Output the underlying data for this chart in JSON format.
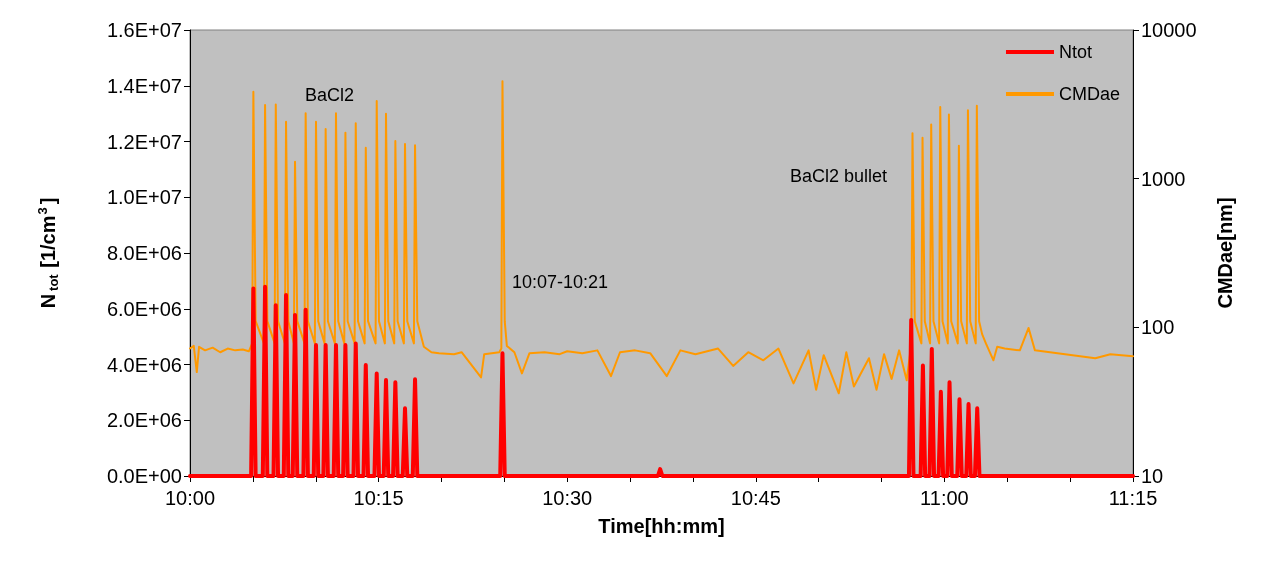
{
  "chart_data": {
    "type": "line",
    "xlabel": "Time[hh:mm]",
    "ylabel": "N$_{tot}$ [1/cm$^{3}$]",
    "y2label": "CMDae[nm]",
    "xlim": [
      10,
      11.25
    ],
    "xticks": [
      {
        "value": 10,
        "label": "10:00"
      },
      {
        "value": 10.0833,
        "label": null
      },
      {
        "value": 10.1667,
        "label": null
      },
      {
        "value": 10.25,
        "label": "10:15"
      },
      {
        "value": 10.3333,
        "label": null
      },
      {
        "value": 10.4167,
        "label": null
      },
      {
        "value": 10.5,
        "label": "10:30"
      },
      {
        "value": 10.5833,
        "label": null
      },
      {
        "value": 10.6667,
        "label": null
      },
      {
        "value": 10.75,
        "label": "10:45"
      },
      {
        "value": 10.8333,
        "label": null
      },
      {
        "value": 10.9167,
        "label": null
      },
      {
        "value": 11,
        "label": "11:00"
      },
      {
        "value": 11.0833,
        "label": null
      },
      {
        "value": 11.1667,
        "label": null
      },
      {
        "value": 11.25,
        "label": "11:15"
      }
    ],
    "ylim": [
      0,
      16000000
    ],
    "yticks": [
      {
        "value": 0,
        "label": "0.0E+00"
      },
      {
        "value": 2000000,
        "label": "2.0E+06"
      },
      {
        "value": 4000000,
        "label": "4.0E+06"
      },
      {
        "value": 6000000,
        "label": "6.0E+06"
      },
      {
        "value": 8000000,
        "label": "8.0E+06"
      },
      {
        "value": 10000000,
        "label": "1.0E+07"
      },
      {
        "value": 12000000,
        "label": "1.2E+07"
      },
      {
        "value": 14000000,
        "label": "1.4E+07"
      },
      {
        "value": 16000000,
        "label": "1.6E+07"
      }
    ],
    "y2lim": [
      10,
      10000
    ],
    "y2ticks": [
      10,
      100,
      1000,
      10000
    ],
    "log": "y2",
    "grid": false,
    "legend": "top right",
    "marker": "none",
    "annotations": [
      "BaCl2",
      "10:07-10:21",
      "BaCl2 bullet"
    ],
    "series": [
      {
        "name": "Ntot",
        "color": "#ff0000",
        "x": [
          10,
          10.081,
          10.084,
          10.087,
          10.0965,
          10.0995,
          10.1025,
          10.1107,
          10.1137,
          10.1167,
          10.1243,
          10.1273,
          10.1303,
          10.1362,
          10.1392,
          10.1422,
          10.1503,
          10.1533,
          10.1563,
          10.164,
          10.167,
          10.17,
          10.1768,
          10.1798,
          10.1828,
          10.1905,
          10.1935,
          10.1965,
          10.203,
          10.206,
          10.209,
          10.2167,
          10.2197,
          10.2227,
          10.23,
          10.233,
          10.236,
          10.2445,
          10.2475,
          10.2505,
          10.2568,
          10.2598,
          10.2628,
          10.2692,
          10.2722,
          10.2752,
          10.282,
          10.285,
          10.288,
          10.2953,
          10.2983,
          10.3013,
          10.4112,
          10.4142,
          10.4172,
          10.6202,
          10.6232,
          10.6262,
          10.953,
          10.956,
          10.959,
          10.9685,
          10.9715,
          10.9745,
          10.9803,
          10.9833,
          10.9863,
          10.9923,
          10.9953,
          10.9983,
          11.0038,
          11.0068,
          11.0098,
          11.017,
          11.02,
          11.023,
          11.029,
          11.032,
          11.035,
          11.0405,
          11.0435,
          11.0465,
          11.25
        ],
        "values": [
          0,
          0,
          6730000,
          0,
          0,
          6790000,
          0,
          0,
          6130000,
          0,
          0,
          6490000,
          0,
          0,
          5780000,
          0,
          0,
          5960000,
          0,
          0,
          4700000,
          0,
          0,
          4700000,
          0,
          0,
          4700000,
          0,
          0,
          4700000,
          0,
          0,
          4750000,
          0,
          0,
          3980000,
          0,
          0,
          3680000,
          0,
          0,
          3440000,
          0,
          0,
          3360000,
          0,
          0,
          2430000,
          0,
          0,
          3470000,
          0,
          0,
          4400000,
          0,
          0,
          250000,
          0,
          0,
          5600000,
          0,
          0,
          3960000,
          0,
          0,
          4560000,
          0,
          0,
          3020000,
          0,
          0,
          3360000,
          0,
          0,
          2750000,
          0,
          0,
          2580000,
          0,
          0,
          2430000,
          0,
          0
        ]
      },
      {
        "name": "CMDae",
        "color": "#ff9900",
        "axis": "y2",
        "x": [
          10,
          10.005,
          10.009,
          10.012,
          10.02,
          10.03,
          10.04,
          10.05,
          10.06,
          10.07,
          10.078,
          10.0825,
          10.084,
          10.087,
          10.098,
          10.0995,
          10.1025,
          10.1122,
          10.1137,
          10.1167,
          10.1258,
          10.1273,
          10.1303,
          10.1377,
          10.1392,
          10.1422,
          10.1518,
          10.1533,
          10.1563,
          10.1655,
          10.167,
          10.17,
          10.1783,
          10.1798,
          10.1828,
          10.192,
          10.1935,
          10.1965,
          10.2045,
          10.206,
          10.209,
          10.2182,
          10.2197,
          10.2227,
          10.2315,
          10.233,
          10.236,
          10.246,
          10.2475,
          10.2505,
          10.2583,
          10.2598,
          10.2628,
          10.2707,
          10.2722,
          10.2752,
          10.2835,
          10.285,
          10.288,
          10.2968,
          10.2983,
          10.3013,
          10.31,
          10.32,
          10.33,
          10.35,
          10.36,
          10.3858,
          10.39,
          10.4,
          10.41,
          10.4127,
          10.4142,
          10.4172,
          10.42,
          10.43,
          10.44,
          10.45,
          10.47,
          10.49,
          10.5,
          10.52,
          10.54,
          10.558,
          10.57,
          10.59,
          10.61,
          10.632,
          10.65,
          10.67,
          10.7,
          10.72,
          10.74,
          10.76,
          10.78,
          10.8,
          10.82,
          10.83,
          10.84,
          10.86,
          10.87,
          10.88,
          10.9,
          10.91,
          10.92,
          10.93,
          10.94,
          10.95,
          10.9562,
          10.9577,
          10.9607,
          10.9695,
          10.971,
          10.974,
          10.981,
          10.9825,
          10.9855,
          10.993,
          10.9945,
          10.9975,
          11.0045,
          11.006,
          11.009,
          11.0177,
          11.0192,
          11.0222,
          11.0297,
          11.0312,
          11.0342,
          11.0415,
          11.043,
          11.046,
          11.05,
          11.055,
          11.065,
          11.07,
          11.08,
          11.1,
          11.1116,
          11.12,
          11.14,
          11.16,
          11.18,
          11.2,
          11.22,
          11.25
        ],
        "values": [
          72,
          75,
          50,
          74,
          70,
          73,
          68,
          72,
          70,
          71,
          69,
          78,
          3840,
          110,
          78,
          3126,
          110,
          78,
          3160,
          110,
          78,
          2415,
          110,
          78,
          1300,
          110,
          78,
          2750,
          110,
          78,
          2415,
          110,
          78,
          2160,
          110,
          78,
          2750,
          110,
          78,
          2040,
          110,
          78,
          2355,
          110,
          78,
          1615,
          110,
          78,
          3325,
          110,
          78,
          2735,
          110,
          78,
          1790,
          110,
          78,
          1710,
          110,
          78,
          1680,
          110,
          74,
          68,
          67,
          66,
          68,
          46,
          66,
          67,
          68,
          72,
          4530,
          110,
          75,
          68,
          49,
          67,
          68,
          66,
          69,
          67,
          70,
          47,
          68,
          70,
          67,
          47,
          70,
          66,
          72,
          55,
          68,
          60,
          72,
          42,
          70,
          38,
          65,
          36,
          68,
          40,
          62,
          38,
          66,
          45,
          70,
          44,
          78,
          2018,
          110,
          78,
          1885,
          110,
          78,
          2317,
          110,
          78,
          3033,
          110,
          78,
          2706,
          110,
          78,
          1665,
          110,
          78,
          2880,
          110,
          78,
          3093,
          110,
          90,
          78,
          60,
          74,
          72,
          70,
          99,
          70,
          68,
          66,
          64,
          62,
          66,
          64
        ]
      }
    ]
  }
}
